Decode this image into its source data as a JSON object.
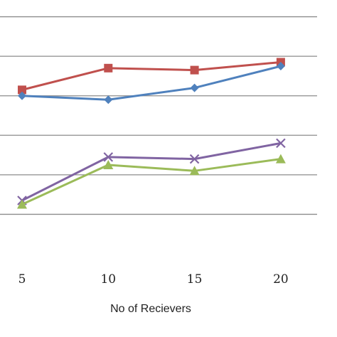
{
  "chart_data": {
    "type": "line",
    "title": "",
    "xlabel": "No of Recievers",
    "ylabel": "",
    "categories": [
      "5",
      "10",
      "15",
      "20"
    ],
    "ylim": [
      0,
      7
    ],
    "grid": true,
    "series": [
      {
        "marker": "square",
        "color": "#c0504d",
        "values": [
          4.15,
          4.7,
          4.65,
          4.85
        ]
      },
      {
        "marker": "diamond",
        "color": "#4f81bd",
        "values": [
          4.0,
          3.9,
          4.2,
          4.75
        ]
      },
      {
        "marker": "x",
        "color": "#8064a2",
        "values": [
          1.35,
          2.45,
          2.4,
          2.8
        ]
      },
      {
        "marker": "triangle",
        "color": "#9bbb59",
        "values": [
          1.25,
          2.25,
          2.1,
          2.4
        ]
      }
    ]
  }
}
